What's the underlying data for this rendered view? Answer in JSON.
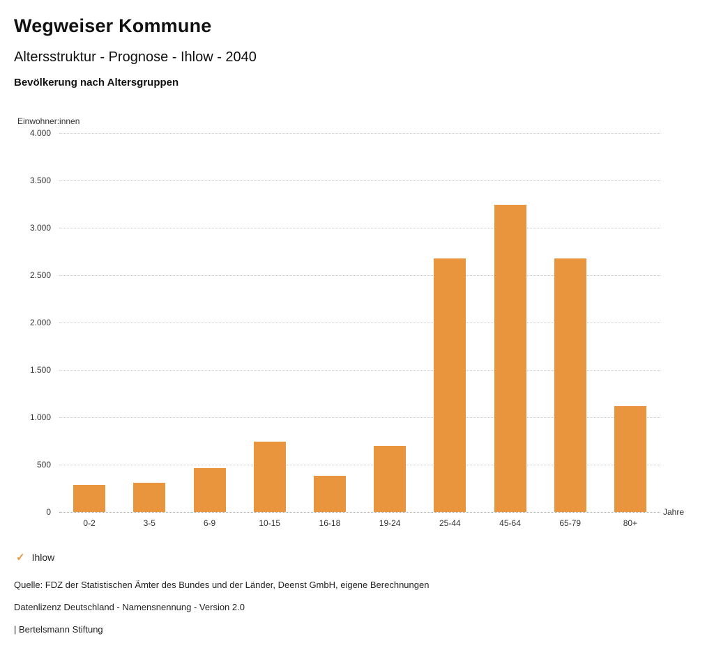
{
  "header": {
    "title": "Wegweiser Kommune",
    "subtitle": "Altersstruktur - Prognose - Ihlow - 2040",
    "chart_title": "Bevölkerung nach Altersgruppen"
  },
  "chart_data": {
    "type": "bar",
    "title": "Bevölkerung nach Altersgruppen",
    "ylabel": "Einwohner:innen",
    "xlabel": "Jahre",
    "categories": [
      "0-2",
      "3-5",
      "6-9",
      "10-15",
      "16-18",
      "19-24",
      "25-44",
      "45-64",
      "65-79",
      "80+"
    ],
    "values": [
      290,
      310,
      460,
      740,
      380,
      700,
      2680,
      3240,
      2680,
      1120
    ],
    "ylim": [
      0,
      4000
    ],
    "ytick_step": 500,
    "bar_color": "#E8953D",
    "grid": "dotted-horizontal",
    "legend": {
      "label": "Ihlow",
      "check_icon": "✓",
      "color": "#E8953D",
      "position": "bottom-left"
    }
  },
  "footer": {
    "source": "Quelle: FDZ der Statistischen Ämter des Bundes und der Länder, Deenst GmbH, eigene Berechnungen",
    "license": "Datenlizenz Deutschland - Namensnennung - Version 2.0",
    "attribution": "| Bertelsmann Stiftung"
  }
}
